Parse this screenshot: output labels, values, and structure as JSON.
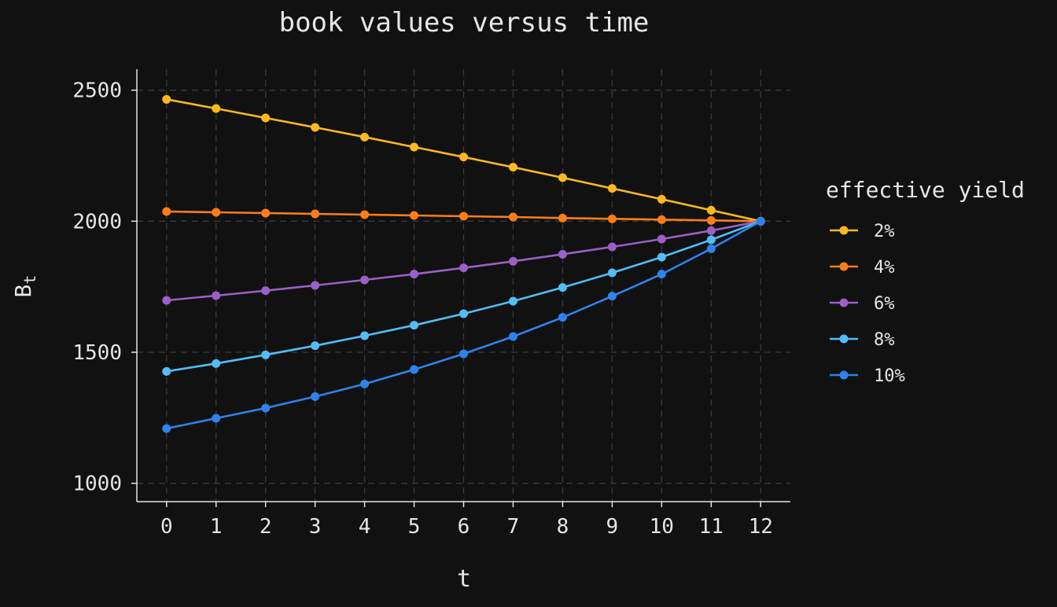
{
  "chart_data": {
    "type": "line",
    "title": "book values versus time",
    "xlabel": "t",
    "ylabel_main": "B",
    "ylabel_sub": "t",
    "legend_title": "effective yield",
    "legend_position": "right",
    "grid": true,
    "xlim": [
      -0.6,
      12.6
    ],
    "ylim": [
      930,
      2580
    ],
    "x_ticks": [
      0,
      1,
      2,
      3,
      4,
      5,
      6,
      7,
      8,
      9,
      10,
      11,
      12
    ],
    "y_ticks": [
      1000,
      1500,
      2000,
      2500
    ],
    "x": [
      0,
      1,
      2,
      3,
      4,
      5,
      6,
      7,
      8,
      9,
      10,
      11,
      12
    ],
    "series": [
      {
        "name": "2%",
        "color": "#fbb91f",
        "values": [
          2465,
          2430,
          2394,
          2358,
          2321,
          2283,
          2245,
          2206,
          2166,
          2125,
          2084,
          2042,
          2000
        ]
      },
      {
        "name": "4%",
        "color": "#fb7e19",
        "values": [
          2037,
          2034,
          2031,
          2028,
          2025,
          2022,
          2019,
          2016,
          2012,
          2009,
          2006,
          2003,
          2000
        ]
      },
      {
        "name": "6%",
        "color": "#9b5fc6",
        "values": [
          1698,
          1716,
          1735,
          1755,
          1776,
          1798,
          1822,
          1847,
          1874,
          1902,
          1932,
          1964,
          2000
        ]
      },
      {
        "name": "8%",
        "color": "#52bdf5",
        "values": [
          1427,
          1457,
          1490,
          1525,
          1563,
          1603,
          1647,
          1695,
          1747,
          1803,
          1863,
          1929,
          2000
        ]
      },
      {
        "name": "10%",
        "color": "#2e82ec",
        "values": [
          1209,
          1248,
          1287,
          1331,
          1379,
          1434,
          1494,
          1560,
          1633,
          1714,
          1798,
          1895,
          2000
        ]
      }
    ]
  }
}
